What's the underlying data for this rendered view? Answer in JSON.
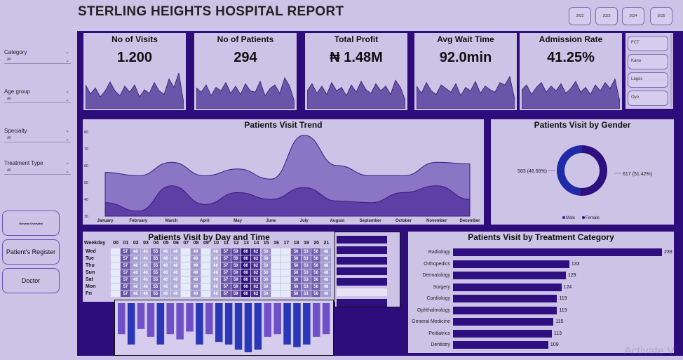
{
  "header": {
    "title": "STERLING HEIGHTS HOSPITAL REPORT",
    "years": [
      "2022",
      "2023",
      "2024",
      "2025"
    ],
    "active_year": "2025"
  },
  "filters": [
    {
      "label": "Category",
      "value": "All"
    },
    {
      "label": "Age group",
      "value": "All"
    },
    {
      "label": "Specialty",
      "value": "All"
    },
    {
      "label": "Treatment Type",
      "value": "All"
    }
  ],
  "nav": {
    "overview": "General Overview",
    "register": "Patient's Register",
    "doctor": "Doctor"
  },
  "kpis": [
    {
      "title": "No of Visits",
      "value": "1.200"
    },
    {
      "title": "No of Patients",
      "value": "294"
    },
    {
      "title": "Total Profit",
      "value": "₦ 1.48M"
    },
    {
      "title": "Avg Wait Time",
      "value": "92.0min"
    },
    {
      "title": "Admission Rate",
      "value": "41.25%"
    }
  ],
  "cities": [
    "FCT",
    "Kano",
    "Lagos",
    "Oyo"
  ],
  "chart_data": [
    {
      "type": "area",
      "title": "Patients Visit Trend",
      "categories": [
        "January",
        "February",
        "March",
        "April",
        "May",
        "June",
        "July",
        "August",
        "September",
        "October",
        "November",
        "December"
      ],
      "y_ticks": [
        "30",
        "40",
        "50",
        "60",
        "70",
        "80"
      ],
      "ylim": [
        30,
        80
      ],
      "series": [
        {
          "values": [
            56,
            54,
            62,
            54,
            58,
            52,
            78,
            60,
            54,
            54,
            62,
            61
          ]
        },
        {
          "values": [
            38,
            33,
            48,
            37,
            44,
            40,
            47,
            39,
            38,
            44,
            48,
            40
          ]
        }
      ]
    },
    {
      "type": "pie",
      "title": "Patients Visit by Gender",
      "labels": [
        "Male",
        "Female"
      ],
      "values": [
        583,
        617
      ],
      "slice_labels": [
        "583 (48.58%)",
        "617 (51.42%)"
      ],
      "legend": [
        "Male",
        "Female"
      ],
      "colors": [
        "#1f2aa8",
        "#2e0f7f"
      ]
    },
    {
      "type": "heatmap",
      "title": "Patients Visit by Day and Time",
      "row_header": "Weekday",
      "columns": [
        "00",
        "01",
        "02",
        "03",
        "04",
        "05",
        "06",
        "07",
        "08",
        "09",
        "10",
        "11",
        "12",
        "13",
        "14",
        "15",
        "16",
        "17",
        "18",
        "19",
        "20",
        "21"
      ],
      "rows": [
        "Wed",
        "Tue",
        "Thu",
        "Sun",
        "Sat",
        "Mon",
        "Fri"
      ],
      "cell_values": [
        "",
        "57",
        "48",
        "46",
        "55",
        "46",
        "46",
        "",
        "49",
        "",
        "46",
        "57",
        "59",
        "66",
        "62",
        "50",
        "",
        "",
        "56",
        "53",
        "56",
        "48"
      ]
    },
    {
      "type": "bar",
      "title": "Patients Visit by Treatment Category",
      "categories": [
        "Radiology",
        "Orthopedics",
        "Dermatology",
        "Surgery",
        "Cardiology",
        "Ophthalmology",
        "General Medicine",
        "Pediatrics",
        "Dentistry"
      ],
      "values": [
        239,
        133,
        129,
        124,
        119,
        119,
        115,
        113,
        109
      ],
      "xlim": [
        0,
        239
      ]
    },
    {
      "type": "bar",
      "values": [
        12,
        16,
        10,
        13,
        16,
        12,
        14,
        11,
        16,
        12,
        15,
        16,
        18,
        19,
        18,
        13,
        12,
        16,
        17,
        16,
        13,
        12
      ]
    }
  ],
  "sparklines": [
    [
      40,
      25,
      35,
      20,
      30,
      45,
      30,
      22,
      38,
      28,
      40,
      20,
      32,
      26,
      44,
      30,
      24,
      50,
      36,
      60,
      10
    ],
    [
      35,
      28,
      40,
      22,
      36,
      30,
      44,
      26,
      38,
      24,
      42,
      30,
      28,
      46,
      22,
      34,
      40,
      26,
      52,
      38,
      12
    ],
    [
      30,
      42,
      26,
      38,
      24,
      44,
      30,
      36,
      22,
      40,
      28,
      46,
      32,
      26,
      42,
      30,
      38,
      24,
      48,
      36,
      14
    ],
    [
      38,
      26,
      44,
      30,
      24,
      40,
      34,
      28,
      42,
      22,
      36,
      30,
      46,
      26,
      38,
      32,
      28,
      44,
      40,
      54,
      16
    ],
    [
      32,
      40,
      24,
      36,
      44,
      28,
      38,
      30,
      42,
      26,
      34,
      46,
      28,
      36,
      24,
      40,
      30,
      44,
      34,
      50,
      12
    ]
  ],
  "colors": {
    "accent": "#2c0d7b",
    "panel": "#cdc3e6",
    "area_top": "#8a76c4",
    "area_bottom": "#5e3fa6"
  },
  "watermark": "Activate V"
}
